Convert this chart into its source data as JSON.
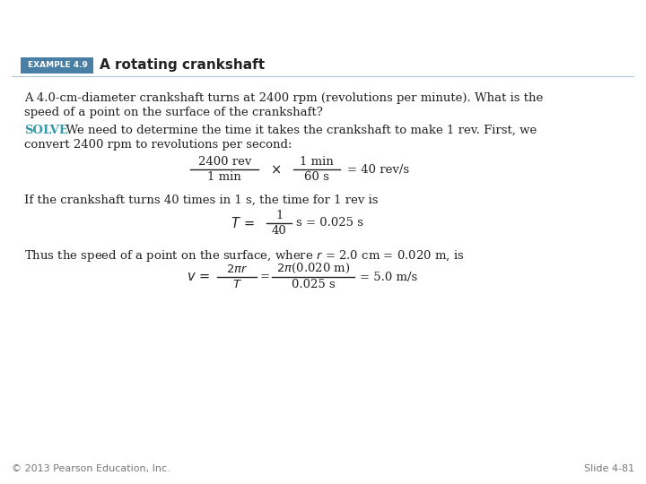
{
  "title": "Example 4.9 A Rotating Crankshaft",
  "title_bg_color": "#3B3B9E",
  "title_text_color": "#FFFFFF",
  "title_fontsize": 16,
  "slide_bg_color": "#FFFFFF",
  "content_bg_color": "#D8E8EF",
  "content_border_color": "#B0C8D8",
  "example_label": "EXAMPLE 4.9",
  "example_label_bg": "#4A7FA5",
  "example_label_color": "#FFFFFF",
  "example_subtitle": "A rotating crankshaft",
  "body_text_color": "#222222",
  "solve_color": "#3399AA",
  "footer_left": "© 2013 Pearson Education, Inc.",
  "footer_right": "Slide 4-81",
  "footer_color": "#777777",
  "footer_fontsize": 8
}
